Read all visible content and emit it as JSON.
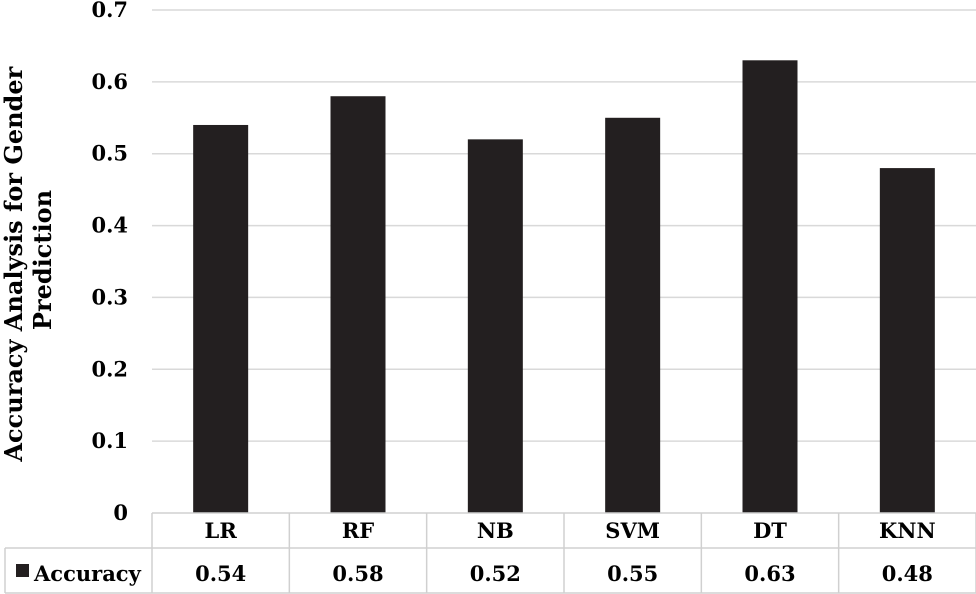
{
  "chart_data": {
    "type": "bar",
    "title": "",
    "xlabel": "",
    "ylabel_lines": [
      "Accuracy Analysis for Gender",
      "Prediction"
    ],
    "categories": [
      "LR",
      "RF",
      "NB",
      "SVM",
      "DT",
      "KNN"
    ],
    "series": [
      {
        "name": "Accuracy",
        "values": [
          0.54,
          0.58,
          0.52,
          0.55,
          0.63,
          0.48
        ],
        "value_labels": [
          "0.54",
          "0.58",
          "0.52",
          "0.55",
          "0.63",
          "0.48"
        ],
        "color": "#231f20"
      }
    ],
    "ylim": [
      0,
      0.7
    ],
    "yticks": [
      0,
      0.1,
      0.2,
      0.3,
      0.4,
      0.5,
      0.6,
      0.7
    ],
    "ytick_labels": [
      "0",
      "0.1",
      "0.2",
      "0.3",
      "0.4",
      "0.5",
      "0.6",
      "0.7"
    ],
    "grid": true,
    "legend": "data-table-left",
    "data_table": true
  }
}
